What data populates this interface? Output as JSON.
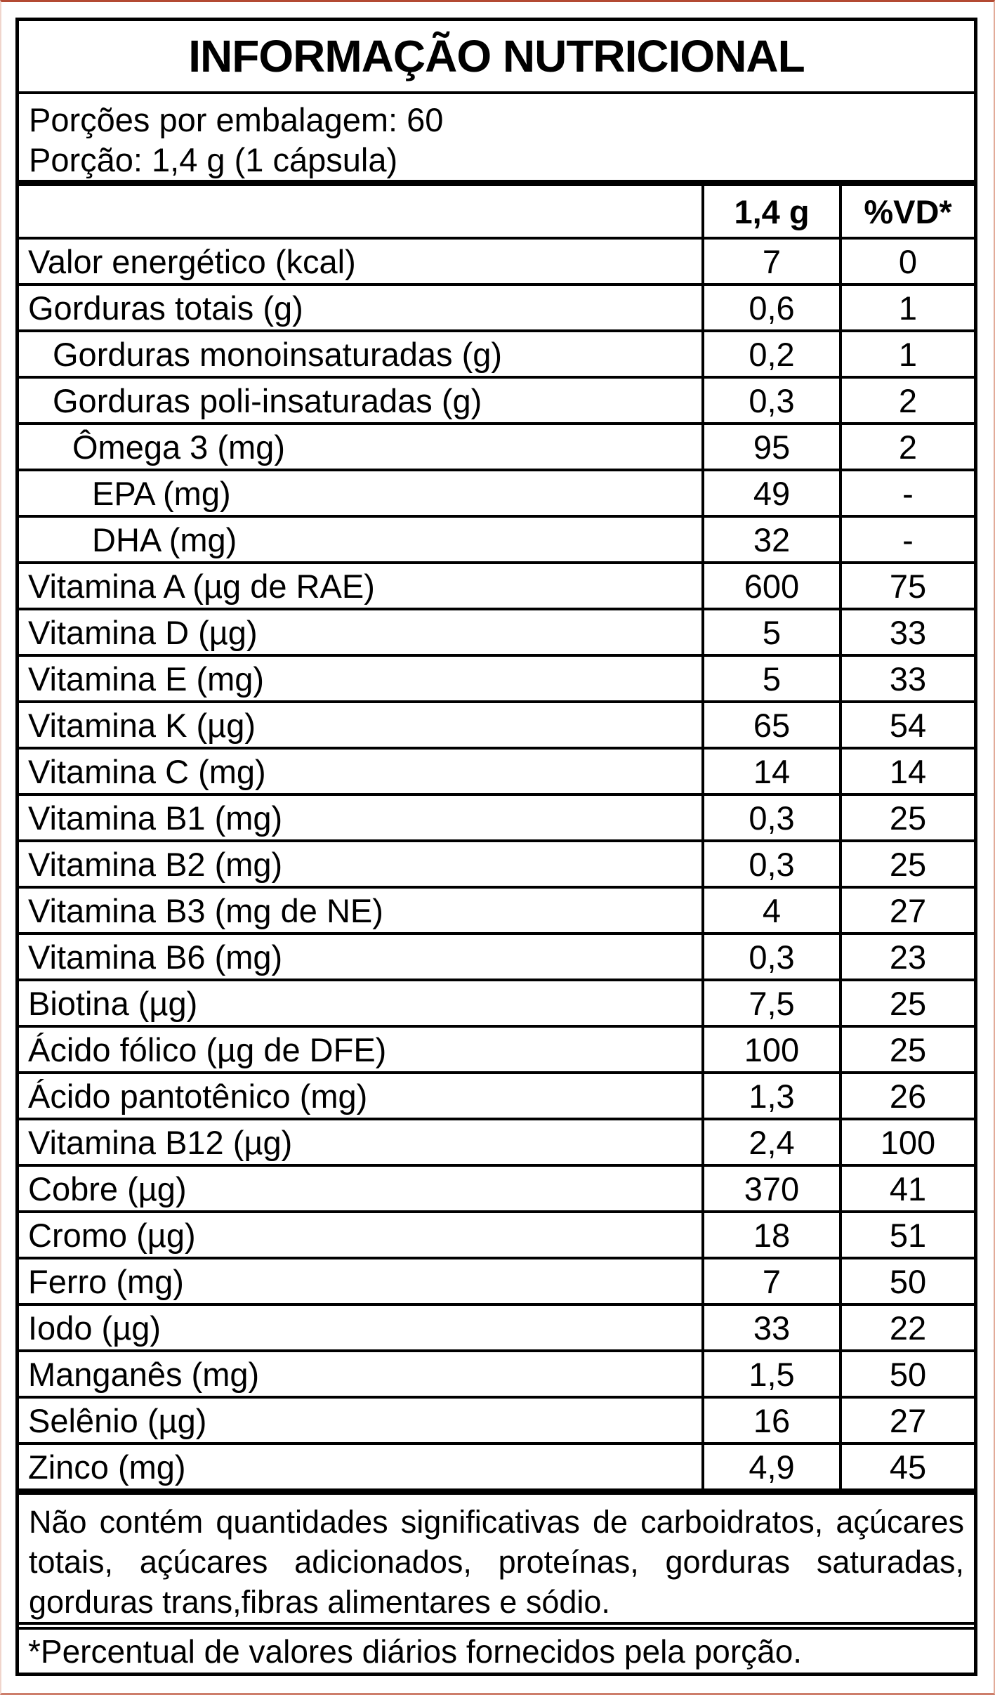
{
  "title": "INFORMAÇÃO NUTRICIONAL",
  "serving_info": {
    "servings_per_package": "Porções por embalagem: 60",
    "serving_size": "Porção: 1,4 g (1 cápsula)"
  },
  "table": {
    "amount_header": "1,4 g",
    "dv_header": "%VD*",
    "rows": [
      {
        "label": "Valor energético (kcal)",
        "indent": 0,
        "amount": "7",
        "dv": "0"
      },
      {
        "label": "Gorduras totais (g)",
        "indent": 0,
        "amount": "0,6",
        "dv": "1"
      },
      {
        "label": "Gorduras monoinsaturadas (g)",
        "indent": 1,
        "amount": "0,2",
        "dv": "1"
      },
      {
        "label": "Gorduras poli-insaturadas (g)",
        "indent": 1,
        "amount": "0,3",
        "dv": "2"
      },
      {
        "label": "Ômega 3 (mg)",
        "indent": 2,
        "amount": "95",
        "dv": "2"
      },
      {
        "label": "EPA (mg)",
        "indent": 3,
        "amount": "49",
        "dv": "-"
      },
      {
        "label": "DHA (mg)",
        "indent": 3,
        "amount": "32",
        "dv": "-"
      },
      {
        "label": "Vitamina A (µg de RAE)",
        "indent": 0,
        "amount": "600",
        "dv": "75"
      },
      {
        "label": "Vitamina D (µg)",
        "indent": 0,
        "amount": "5",
        "dv": "33"
      },
      {
        "label": "Vitamina E (mg)",
        "indent": 0,
        "amount": "5",
        "dv": "33"
      },
      {
        "label": "Vitamina K (µg)",
        "indent": 0,
        "amount": "65",
        "dv": "54"
      },
      {
        "label": "Vitamina C (mg)",
        "indent": 0,
        "amount": "14",
        "dv": "14"
      },
      {
        "label": "Vitamina B1 (mg)",
        "indent": 0,
        "amount": "0,3",
        "dv": "25"
      },
      {
        "label": "Vitamina B2 (mg)",
        "indent": 0,
        "amount": "0,3",
        "dv": "25"
      },
      {
        "label": "Vitamina B3 (mg de NE)",
        "indent": 0,
        "amount": "4",
        "dv": "27"
      },
      {
        "label": "Vitamina B6 (mg)",
        "indent": 0,
        "amount": "0,3",
        "dv": "23"
      },
      {
        "label": "Biotina (µg)",
        "indent": 0,
        "amount": "7,5",
        "dv": "25"
      },
      {
        "label": "Ácido fólico (µg de DFE)",
        "indent": 0,
        "amount": "100",
        "dv": "25"
      },
      {
        "label": "Ácido pantotênico (mg)",
        "indent": 0,
        "amount": "1,3",
        "dv": "26"
      },
      {
        "label": "Vitamina B12 (µg)",
        "indent": 0,
        "amount": "2,4",
        "dv": "100"
      },
      {
        "label": "Cobre (µg)",
        "indent": 0,
        "amount": "370",
        "dv": "41"
      },
      {
        "label": "Cromo (µg)",
        "indent": 0,
        "amount": "18",
        "dv": "51"
      },
      {
        "label": "Ferro (mg)",
        "indent": 0,
        "amount": "7",
        "dv": "50"
      },
      {
        "label": "Iodo (µg)",
        "indent": 0,
        "amount": "33",
        "dv": "22"
      },
      {
        "label": "Manganês (mg)",
        "indent": 0,
        "amount": "1,5",
        "dv": "50"
      },
      {
        "label": "Selênio (µg)",
        "indent": 0,
        "amount": "16",
        "dv": "27"
      },
      {
        "label": "Zinco (mg)",
        "indent": 0,
        "amount": "4,9",
        "dv": "45"
      }
    ]
  },
  "footnotes": {
    "no_significant": "Não contém quantidades significativas de carboidratos, açúcares totais, açúcares adicionados, proteínas, gorduras saturadas, gorduras trans,fibras alimentares e sódio.",
    "dv_note": "*Percentual de valores diários fornecidos pela porção."
  },
  "colors": {
    "text": "#000000",
    "background": "#ffffff",
    "frame_top": "#b34a33",
    "frame_bottom": "#cd7e6b",
    "frame_left": "#f0d5cc",
    "frame_right": "#e2ab99"
  }
}
